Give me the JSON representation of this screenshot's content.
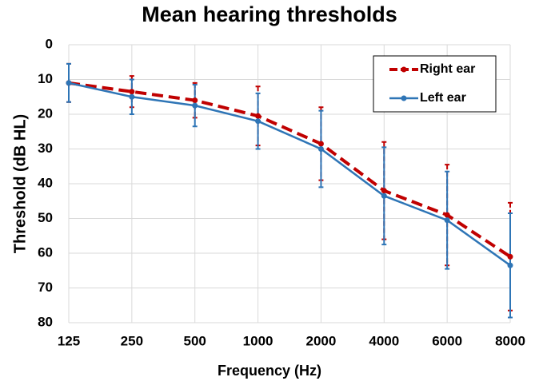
{
  "chart_data": {
    "type": "line",
    "title": "Mean hearing thresholds",
    "x_label": "Frequency (Hz)",
    "y_label": "Threshold (dB HL)",
    "categories": [
      "125",
      "250",
      "500",
      "1000",
      "2000",
      "4000",
      "6000",
      "8000"
    ],
    "series": [
      {
        "name": "Right ear",
        "color": "#c00000",
        "dashed": true,
        "values": [
          11,
          13.5,
          16,
          20.5,
          28.5,
          42,
          49,
          61
        ],
        "errors": [
          5.5,
          4.5,
          5,
          8.5,
          10.5,
          14,
          14.5,
          15.5
        ]
      },
      {
        "name": "Left ear",
        "color": "#2e75b6",
        "dashed": false,
        "values": [
          11,
          15,
          17.5,
          22,
          30,
          43.5,
          50.5,
          63.5
        ],
        "errors": [
          5.5,
          5,
          6,
          8,
          11,
          14,
          14,
          15
        ]
      }
    ],
    "ylim": [
      0,
      80
    ],
    "yticks": [
      0,
      10,
      20,
      30,
      40,
      50,
      60,
      70,
      80
    ],
    "y_inverted": true,
    "grid": true,
    "legend": "top-right"
  }
}
